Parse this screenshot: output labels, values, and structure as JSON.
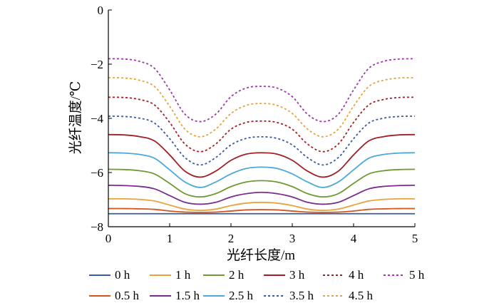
{
  "chart_data": {
    "type": "line",
    "xlabel": "光纤长度/m",
    "ylabel": "光纤温度/℃",
    "xlim": [
      0,
      5
    ],
    "ylim": [
      -8,
      0
    ],
    "xticks": [
      0,
      1,
      2,
      3,
      4,
      5
    ],
    "xtick_labels": [
      "0",
      "1",
      "2",
      "3",
      "4",
      "5"
    ],
    "yticks": [
      0,
      -2,
      -4,
      -6,
      -8
    ],
    "ytick_labels": [
      "0",
      "−2",
      "−4",
      "−6",
      "−8"
    ],
    "grid": false,
    "legend_position": "bottom",
    "x": [
      0,
      0.25,
      0.5,
      0.75,
      1.0,
      1.25,
      1.5,
      1.75,
      2.0,
      2.25,
      2.5,
      2.75,
      3.0,
      3.25,
      3.5,
      3.75,
      4.0,
      4.25,
      4.5,
      4.75,
      5.0
    ],
    "series": [
      {
        "name": "0 h",
        "color": "#3b5ba8",
        "dashed": false,
        "values": [
          -7.52,
          -7.52,
          -7.52,
          -7.52,
          -7.52,
          -7.52,
          -7.52,
          -7.52,
          -7.52,
          -7.52,
          -7.52,
          -7.52,
          -7.52,
          -7.52,
          -7.52,
          -7.52,
          -7.52,
          -7.52,
          -7.52,
          -7.52,
          -7.52
        ]
      },
      {
        "name": "0.5 h",
        "color": "#d4561f",
        "dashed": false,
        "values": [
          -7.33,
          -7.33,
          -7.34,
          -7.36,
          -7.42,
          -7.46,
          -7.47,
          -7.46,
          -7.42,
          -7.38,
          -7.37,
          -7.38,
          -7.42,
          -7.46,
          -7.47,
          -7.46,
          -7.42,
          -7.36,
          -7.34,
          -7.33,
          -7.33
        ]
      },
      {
        "name": "1 h",
        "color": "#e8a33a",
        "dashed": false,
        "values": [
          -6.97,
          -6.97,
          -6.99,
          -7.05,
          -7.2,
          -7.35,
          -7.4,
          -7.35,
          -7.22,
          -7.13,
          -7.1,
          -7.13,
          -7.22,
          -7.35,
          -7.4,
          -7.35,
          -7.2,
          -7.05,
          -6.99,
          -6.97,
          -6.97
        ]
      },
      {
        "name": "1.5 h",
        "color": "#7b2d8e",
        "dashed": false,
        "values": [
          -6.47,
          -6.48,
          -6.51,
          -6.6,
          -6.85,
          -7.1,
          -7.17,
          -7.1,
          -6.9,
          -6.78,
          -6.73,
          -6.78,
          -6.9,
          -7.1,
          -7.17,
          -7.1,
          -6.85,
          -6.6,
          -6.51,
          -6.48,
          -6.47
        ]
      },
      {
        "name": "2 h",
        "color": "#6f9a32",
        "dashed": false,
        "values": [
          -5.88,
          -5.89,
          -5.93,
          -6.05,
          -6.4,
          -6.78,
          -6.9,
          -6.78,
          -6.52,
          -6.35,
          -6.3,
          -6.35,
          -6.52,
          -6.78,
          -6.9,
          -6.78,
          -6.4,
          -6.05,
          -5.93,
          -5.89,
          -5.88
        ]
      },
      {
        "name": "2.5 h",
        "color": "#4da8d8",
        "dashed": false,
        "values": [
          -5.27,
          -5.28,
          -5.33,
          -5.47,
          -5.9,
          -6.35,
          -6.55,
          -6.35,
          -6.05,
          -5.85,
          -5.8,
          -5.85,
          -6.05,
          -6.35,
          -6.55,
          -6.35,
          -5.9,
          -5.47,
          -5.33,
          -5.28,
          -5.27
        ]
      },
      {
        "name": "3 h",
        "color": "#a21f26",
        "dashed": false,
        "values": [
          -4.6,
          -4.61,
          -4.67,
          -4.83,
          -5.35,
          -5.95,
          -6.17,
          -5.95,
          -5.55,
          -5.32,
          -5.27,
          -5.32,
          -5.55,
          -5.95,
          -6.17,
          -5.95,
          -5.35,
          -4.83,
          -4.67,
          -4.61,
          -4.6
        ]
      },
      {
        "name": "3.5 h",
        "color": "#3b5ba8",
        "dashed": true,
        "values": [
          -3.92,
          -3.93,
          -3.99,
          -4.17,
          -4.75,
          -5.45,
          -5.72,
          -5.45,
          -4.98,
          -4.74,
          -4.68,
          -4.74,
          -4.98,
          -5.45,
          -5.72,
          -5.45,
          -4.75,
          -4.17,
          -3.99,
          -3.93,
          -3.92
        ]
      },
      {
        "name": "4 h",
        "color": "#a21f26",
        "dashed": true,
        "values": [
          -3.22,
          -3.23,
          -3.3,
          -3.5,
          -4.15,
          -4.95,
          -5.23,
          -4.95,
          -4.4,
          -4.15,
          -4.1,
          -4.15,
          -4.4,
          -4.95,
          -5.23,
          -4.95,
          -4.15,
          -3.5,
          -3.3,
          -3.23,
          -3.22
        ]
      },
      {
        "name": "4.5 h",
        "color": "#e8a33a",
        "dashed": true,
        "values": [
          -2.5,
          -2.51,
          -2.59,
          -2.82,
          -3.55,
          -4.4,
          -4.68,
          -4.4,
          -3.82,
          -3.52,
          -3.45,
          -3.52,
          -3.82,
          -4.4,
          -4.68,
          -4.4,
          -3.55,
          -2.82,
          -2.59,
          -2.51,
          -2.5
        ]
      },
      {
        "name": "5 h",
        "color": "#9b3aa8",
        "dashed": true,
        "values": [
          -1.8,
          -1.81,
          -1.89,
          -2.15,
          -2.95,
          -3.85,
          -4.12,
          -3.85,
          -3.2,
          -2.88,
          -2.82,
          -2.88,
          -3.2,
          -3.85,
          -4.12,
          -3.85,
          -2.95,
          -2.15,
          -1.89,
          -1.81,
          -1.8
        ]
      }
    ],
    "legend_rows": [
      [
        "0 h",
        "1 h",
        "2 h",
        "3 h",
        "4 h",
        "5 h"
      ],
      [
        "0.5 h",
        "1.5 h",
        "2.5 h",
        "3.5 h",
        "4.5 h"
      ]
    ]
  }
}
